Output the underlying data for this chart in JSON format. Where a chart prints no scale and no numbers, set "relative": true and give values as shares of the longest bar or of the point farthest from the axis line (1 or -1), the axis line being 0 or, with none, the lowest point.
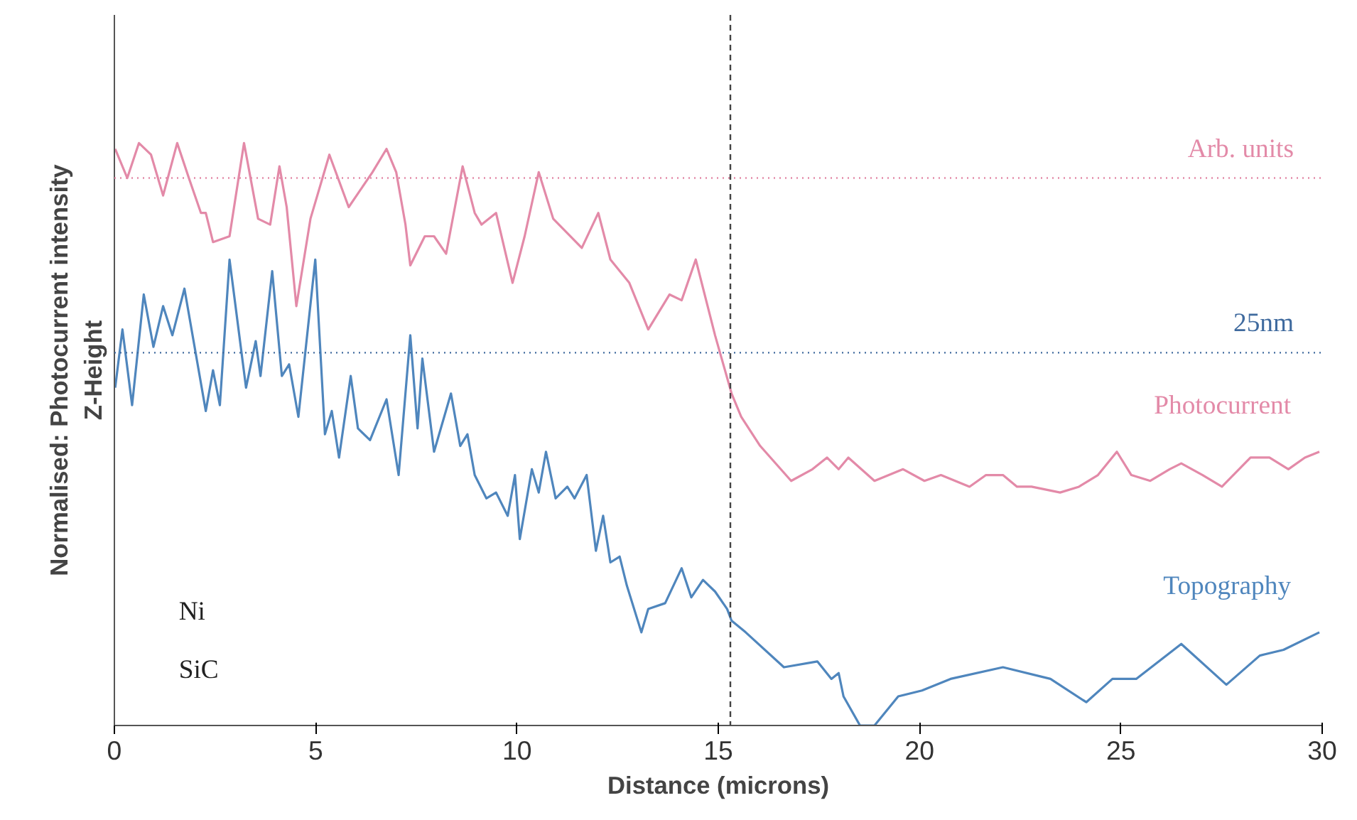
{
  "chart_data": {
    "type": "line",
    "relative": true,
    "xlabel": "Distance (microns)",
    "ylabel": "Normalised: Photocurrent intensity\nZ-Height",
    "xlim": [
      0,
      30
    ],
    "xticks": [
      0,
      5,
      10,
      15,
      20,
      25,
      30
    ],
    "tick_labels": "x",
    "grid": false,
    "marker": "none",
    "line_style": "solid",
    "series": [
      {
        "name": "Photocurrent",
        "color": "#e38aa8",
        "x": [
          0.02,
          0.32,
          0.61,
          0.91,
          1.21,
          1.56,
          1.85,
          2.15,
          2.27,
          2.45,
          2.86,
          3.22,
          3.57,
          3.87,
          4.1,
          4.28,
          4.52,
          4.87,
          5.34,
          5.82,
          6.41,
          6.76,
          7.0,
          7.23,
          7.35,
          7.71,
          7.94,
          8.24,
          8.65,
          8.95,
          9.12,
          9.48,
          9.89,
          10.19,
          10.54,
          10.9,
          11.61,
          12.02,
          12.32,
          12.79,
          13.26,
          13.79,
          14.09,
          14.44,
          14.92,
          15.33,
          15.57,
          16.04,
          16.81,
          17.34,
          17.7,
          17.99,
          18.23,
          18.88,
          19.59,
          20.12,
          20.53,
          21.24,
          21.65,
          22.07,
          22.42,
          22.78,
          23.49,
          23.96,
          24.43,
          24.9,
          25.26,
          25.73,
          26.21,
          26.5,
          27.03,
          27.51,
          28.22,
          28.69,
          29.16,
          29.57,
          29.93
        ],
        "values": [
          0.99,
          0.94,
          1.0,
          0.98,
          0.91,
          1.0,
          0.94,
          0.88,
          0.88,
          0.83,
          0.84,
          1.0,
          0.87,
          0.86,
          0.96,
          0.89,
          0.72,
          0.87,
          0.98,
          0.89,
          0.95,
          0.99,
          0.95,
          0.86,
          0.79,
          0.84,
          0.84,
          0.81,
          0.96,
          0.88,
          0.86,
          0.88,
          0.76,
          0.84,
          0.95,
          0.87,
          0.82,
          0.88,
          0.8,
          0.76,
          0.68,
          0.74,
          0.73,
          0.8,
          0.67,
          0.57,
          0.53,
          0.48,
          0.42,
          0.44,
          0.46,
          0.44,
          0.46,
          0.42,
          0.44,
          0.42,
          0.43,
          0.41,
          0.43,
          0.43,
          0.41,
          0.41,
          0.4,
          0.41,
          0.43,
          0.47,
          0.43,
          0.42,
          0.44,
          0.45,
          0.43,
          0.41,
          0.46,
          0.46,
          0.44,
          0.46,
          0.47
        ]
      },
      {
        "name": "Topography",
        "color": "#4f86bd",
        "x": [
          0.02,
          0.2,
          0.44,
          0.73,
          0.97,
          1.21,
          1.44,
          1.74,
          2.27,
          2.45,
          2.62,
          2.86,
          3.27,
          3.51,
          3.63,
          3.92,
          4.16,
          4.34,
          4.57,
          4.99,
          5.23,
          5.4,
          5.58,
          5.87,
          6.05,
          6.35,
          6.76,
          7.06,
          7.35,
          7.53,
          7.65,
          7.94,
          8.36,
          8.59,
          8.77,
          8.95,
          9.24,
          9.48,
          9.77,
          9.95,
          10.07,
          10.37,
          10.54,
          10.72,
          10.96,
          11.25,
          11.43,
          11.73,
          11.96,
          12.14,
          12.32,
          12.55,
          12.73,
          13.09,
          13.26,
          13.68,
          14.09,
          14.33,
          14.62,
          14.92,
          15.22,
          15.33,
          15.68,
          16.63,
          17.46,
          17.81,
          17.99,
          18.11,
          18.52,
          18.88,
          19.47,
          20.06,
          20.77,
          22.07,
          23.25,
          24.14,
          24.79,
          25.38,
          26.5,
          27.62,
          28.45,
          29.04,
          29.93
        ],
        "values": [
          0.58,
          0.68,
          0.55,
          0.74,
          0.65,
          0.72,
          0.67,
          0.75,
          0.54,
          0.61,
          0.55,
          0.8,
          0.58,
          0.66,
          0.6,
          0.78,
          0.6,
          0.62,
          0.53,
          0.8,
          0.5,
          0.54,
          0.46,
          0.6,
          0.51,
          0.49,
          0.56,
          0.43,
          0.67,
          0.51,
          0.63,
          0.47,
          0.57,
          0.48,
          0.5,
          0.43,
          0.39,
          0.4,
          0.36,
          0.43,
          0.32,
          0.44,
          0.4,
          0.47,
          0.39,
          0.41,
          0.39,
          0.43,
          0.3,
          0.36,
          0.28,
          0.29,
          0.24,
          0.16,
          0.2,
          0.21,
          0.27,
          0.22,
          0.25,
          0.23,
          0.2,
          0.18,
          0.16,
          0.1,
          0.11,
          0.08,
          0.09,
          0.05,
          0.0,
          0.0,
          0.05,
          0.06,
          0.08,
          0.1,
          0.08,
          0.04,
          0.08,
          0.08,
          0.14,
          0.07,
          0.12,
          0.13,
          0.16
        ]
      }
    ],
    "ref_lines": [
      {
        "axis": "y",
        "value": 0.94,
        "label": "Arb. units",
        "color": "#e38aa8",
        "line_style": "dotted"
      },
      {
        "axis": "y",
        "value": 0.64,
        "label": "25nm",
        "color": "#3f6a9e",
        "line_style": "dotted"
      },
      {
        "axis": "x",
        "value": 15.3,
        "color": "#444444",
        "line_style": "dashed"
      }
    ],
    "annotations": [
      "Ni",
      "SiC"
    ]
  }
}
